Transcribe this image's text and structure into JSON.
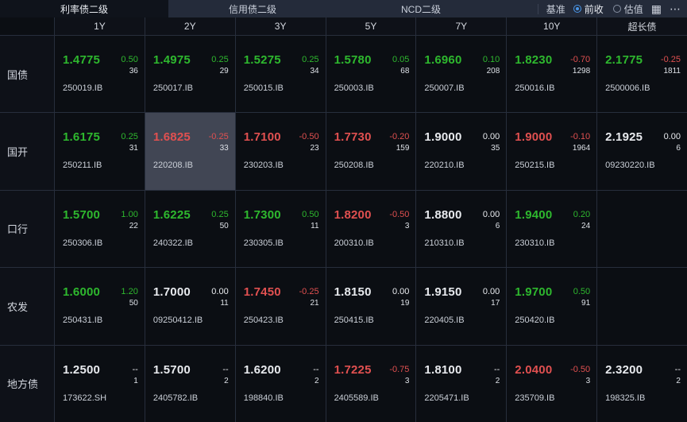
{
  "topbar": {
    "tabs": [
      {
        "label": "利率债二级",
        "active": true
      },
      {
        "label": "信用债二级",
        "active": false
      },
      {
        "label": "NCD二级",
        "active": false
      }
    ],
    "benchmark_label": "基准",
    "radios": [
      {
        "label": "前收",
        "selected": true
      },
      {
        "label": "估值",
        "selected": false
      }
    ],
    "icons": {
      "layout_grid": "▦",
      "more_options": "⋯"
    }
  },
  "columns": [
    "1Y",
    "2Y",
    "3Y",
    "5Y",
    "7Y",
    "10Y",
    "超长债"
  ],
  "rows": [
    {
      "label": "国债",
      "cells": [
        {
          "yield": "1.4775",
          "yield_color": "green",
          "change": "0.50",
          "change_color": "green",
          "count": "36",
          "code": "250019.IB"
        },
        {
          "yield": "1.4975",
          "yield_color": "green",
          "change": "0.25",
          "change_color": "green",
          "count": "29",
          "code": "250017.IB"
        },
        {
          "yield": "1.5275",
          "yield_color": "green",
          "change": "0.25",
          "change_color": "green",
          "count": "34",
          "code": "250015.IB"
        },
        {
          "yield": "1.5780",
          "yield_color": "green",
          "change": "0.05",
          "change_color": "green",
          "count": "68",
          "code": "250003.IB"
        },
        {
          "yield": "1.6960",
          "yield_color": "green",
          "change": "0.10",
          "change_color": "green",
          "count": "208",
          "code": "250007.IB"
        },
        {
          "yield": "1.8230",
          "yield_color": "green",
          "change": "-0.70",
          "change_color": "red",
          "count": "1298",
          "code": "250016.IB"
        },
        {
          "yield": "2.1775",
          "yield_color": "green",
          "change": "-0.25",
          "change_color": "red",
          "count": "1811",
          "code": "2500006.IB"
        }
      ]
    },
    {
      "label": "国开",
      "cells": [
        {
          "yield": "1.6175",
          "yield_color": "green",
          "change": "0.25",
          "change_color": "green",
          "count": "31",
          "code": "250211.IB"
        },
        {
          "yield": "1.6825",
          "yield_color": "red",
          "change": "-0.25",
          "change_color": "red",
          "count": "33",
          "code": "220208.IB",
          "highlighted": true
        },
        {
          "yield": "1.7100",
          "yield_color": "red",
          "change": "-0.50",
          "change_color": "red",
          "count": "23",
          "code": "230203.IB"
        },
        {
          "yield": "1.7730",
          "yield_color": "red",
          "change": "-0.20",
          "change_color": "red",
          "count": "159",
          "code": "250208.IB"
        },
        {
          "yield": "1.9000",
          "yield_color": "white",
          "change": "0.00",
          "change_color": "white",
          "count": "35",
          "code": "220210.IB"
        },
        {
          "yield": "1.9000",
          "yield_color": "red",
          "change": "-0.10",
          "change_color": "red",
          "count": "1964",
          "code": "250215.IB"
        },
        {
          "yield": "2.1925",
          "yield_color": "white",
          "change": "0.00",
          "change_color": "white",
          "count": "6",
          "code": "09230220.IB"
        }
      ]
    },
    {
      "label": "口行",
      "cells": [
        {
          "yield": "1.5700",
          "yield_color": "green",
          "change": "1.00",
          "change_color": "green",
          "count": "22",
          "code": "250306.IB"
        },
        {
          "yield": "1.6225",
          "yield_color": "green",
          "change": "0.25",
          "change_color": "green",
          "count": "50",
          "code": "240322.IB"
        },
        {
          "yield": "1.7300",
          "yield_color": "green",
          "change": "0.50",
          "change_color": "green",
          "count": "11",
          "code": "230305.IB"
        },
        {
          "yield": "1.8200",
          "yield_color": "red",
          "change": "-0.50",
          "change_color": "red",
          "count": "3",
          "code": "200310.IB"
        },
        {
          "yield": "1.8800",
          "yield_color": "white",
          "change": "0.00",
          "change_color": "white",
          "count": "6",
          "code": "210310.IB"
        },
        {
          "yield": "1.9400",
          "yield_color": "green",
          "change": "0.20",
          "change_color": "green",
          "count": "24",
          "code": "230310.IB"
        },
        null
      ]
    },
    {
      "label": "农发",
      "cells": [
        {
          "yield": "1.6000",
          "yield_color": "green",
          "change": "1.20",
          "change_color": "green",
          "count": "50",
          "code": "250431.IB"
        },
        {
          "yield": "1.7000",
          "yield_color": "white",
          "change": "0.00",
          "change_color": "white",
          "count": "11",
          "code": "09250412.IB"
        },
        {
          "yield": "1.7450",
          "yield_color": "red",
          "change": "-0.25",
          "change_color": "red",
          "count": "21",
          "code": "250423.IB"
        },
        {
          "yield": "1.8150",
          "yield_color": "white",
          "change": "0.00",
          "change_color": "white",
          "count": "19",
          "code": "250415.IB"
        },
        {
          "yield": "1.9150",
          "yield_color": "white",
          "change": "0.00",
          "change_color": "white",
          "count": "17",
          "code": "220405.IB"
        },
        {
          "yield": "1.9700",
          "yield_color": "green",
          "change": "0.50",
          "change_color": "green",
          "count": "91",
          "code": "250420.IB"
        },
        null
      ]
    },
    {
      "label": "地方债",
      "cells": [
        {
          "yield": "1.2500",
          "yield_color": "white",
          "change": "--",
          "change_color": "white",
          "count": "1",
          "code": "173622.SH"
        },
        {
          "yield": "1.5700",
          "yield_color": "white",
          "change": "--",
          "change_color": "white",
          "count": "2",
          "code": "2405782.IB"
        },
        {
          "yield": "1.6200",
          "yield_color": "white",
          "change": "--",
          "change_color": "white",
          "count": "2",
          "code": "198840.IB"
        },
        {
          "yield": "1.7225",
          "yield_color": "red",
          "change": "-0.75",
          "change_color": "red",
          "count": "3",
          "code": "2405589.IB"
        },
        {
          "yield": "1.8100",
          "yield_color": "white",
          "change": "--",
          "change_color": "white",
          "count": "2",
          "code": "2205471.IB"
        },
        {
          "yield": "2.0400",
          "yield_color": "red",
          "change": "-0.50",
          "change_color": "red",
          "count": "3",
          "code": "235709.IB"
        },
        {
          "yield": "2.3200",
          "yield_color": "white",
          "change": "--",
          "change_color": "white",
          "count": "2",
          "code": "198325.IB"
        }
      ]
    }
  ],
  "colors": {
    "green": "#2eb82e",
    "red": "#e05050",
    "white": "#e8eaee",
    "accent_blue": "#4a97e8",
    "highlight_bg": "#414654"
  }
}
